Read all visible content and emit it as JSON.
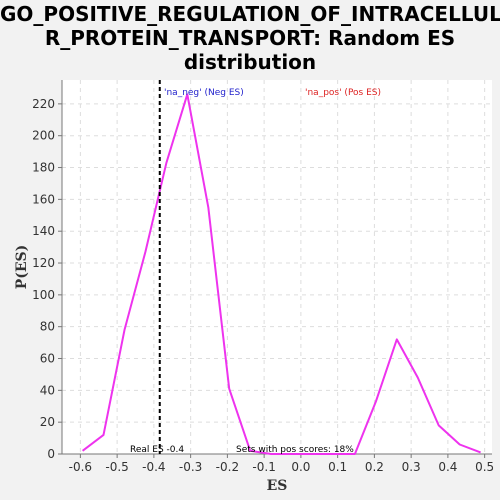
{
  "chart_data": {
    "type": "line",
    "title": "GO_POSITIVE_REGULATION_OF_INTRACELLULAR_PROTEIN_TRANSPORT: Random ES distribution",
    "title_lines": [
      "GO_POSITIVE_REGULATION_OF_INTRACELLULA",
      "R_PROTEIN_TRANSPORT: Random ES",
      "distribution"
    ],
    "xlabel": "ES",
    "ylabel": "P(ES)",
    "xlim": [
      -0.65,
      0.52
    ],
    "ylim": [
      0,
      235
    ],
    "xticks": [
      -0.6,
      -0.5,
      -0.4,
      -0.3,
      -0.2,
      -0.1,
      0.0,
      0.1,
      0.2,
      0.3,
      0.4,
      0.5
    ],
    "xtick_labels": [
      "-0.6",
      "-0.5",
      "-0.4",
      "-0.3",
      "-0.2",
      "-0.1",
      "0.0",
      "0.1",
      "0.2",
      "0.3",
      "0.4",
      "0.5"
    ],
    "yticks": [
      0,
      20,
      40,
      60,
      80,
      100,
      120,
      140,
      160,
      180,
      200,
      220
    ],
    "grid": true,
    "line_color": "#ee33ee",
    "series": [
      {
        "x": [
          -0.594,
          -0.537,
          -0.48,
          -0.423,
          -0.366,
          -0.309,
          -0.252,
          -0.195,
          -0.138,
          -0.081,
          -0.024,
          0.033,
          0.09,
          0.147,
          0.204,
          0.261,
          0.318,
          0.375,
          0.432,
          0.489
        ],
        "values": [
          2,
          12,
          78,
          127,
          183,
          226,
          155,
          41,
          2,
          0,
          0,
          0,
          0,
          0,
          33,
          72,
          48,
          18,
          6,
          1
        ]
      }
    ],
    "real_es": -0.384,
    "legend": [
      {
        "label": "'na_neg' (Neg ES)",
        "color": "#2222cc"
      },
      {
        "label": "'na_pos' (Pos ES)",
        "color": "#dd2222"
      }
    ],
    "annotations": {
      "real_es": "Real ES -0.4",
      "pos_scores": "Sets with pos scores: 18%"
    }
  }
}
